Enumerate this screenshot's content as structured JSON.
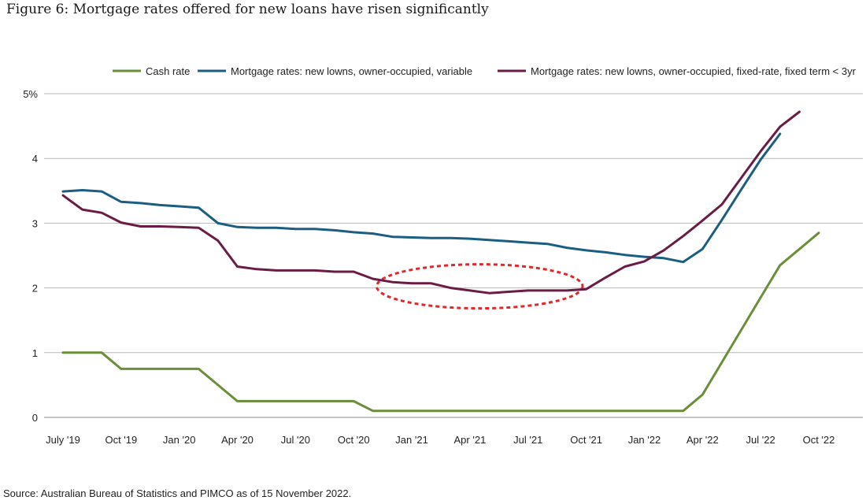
{
  "figure": {
    "title": "Figure 6: Mortgage rates offered for new loans have risen significantly",
    "source": "Source: Australian Bureau of Statistics and PIMCO as of 15 November 2022."
  },
  "chart_data": {
    "type": "line",
    "title": "Figure 6: Mortgage rates offered for new loans have risen significantly",
    "xlabel": "",
    "ylabel": "",
    "ylim": [
      0,
      5
    ],
    "y_ticks": [
      0,
      1,
      2,
      3,
      4,
      5
    ],
    "y_tick_labels": [
      "0",
      "1",
      "2",
      "3",
      "4",
      "5%"
    ],
    "x_tick_labels": [
      "July '19",
      "Oct '19",
      "Jan '20",
      "Apr '20",
      "Jul '20",
      "Oct '20",
      "Jan '21",
      "Apr '21",
      "Jul '21",
      "Oct '21",
      "Jan '22",
      "Apr '22",
      "Jul '22",
      "Oct '22"
    ],
    "grid": "horizontal",
    "legend_position": "top",
    "x": [
      "2019-07",
      "2019-08",
      "2019-09",
      "2019-10",
      "2019-11",
      "2019-12",
      "2020-01",
      "2020-02",
      "2020-03",
      "2020-04",
      "2020-05",
      "2020-06",
      "2020-07",
      "2020-08",
      "2020-09",
      "2020-10",
      "2020-11",
      "2020-12",
      "2021-01",
      "2021-02",
      "2021-03",
      "2021-04",
      "2021-05",
      "2021-06",
      "2021-07",
      "2021-08",
      "2021-09",
      "2021-10",
      "2021-11",
      "2021-12",
      "2022-01",
      "2022-02",
      "2022-03",
      "2022-04",
      "2022-05",
      "2022-06",
      "2022-07",
      "2022-08",
      "2022-09",
      "2022-10"
    ],
    "series": [
      {
        "name": "Cash rate",
        "color": "#6b8e3a",
        "values": [
          1.0,
          1.0,
          1.0,
          0.75,
          0.75,
          0.75,
          0.75,
          0.75,
          0.5,
          0.25,
          0.25,
          0.25,
          0.25,
          0.25,
          0.25,
          0.25,
          0.1,
          0.1,
          0.1,
          0.1,
          0.1,
          0.1,
          0.1,
          0.1,
          0.1,
          0.1,
          0.1,
          0.1,
          0.1,
          0.1,
          0.1,
          0.1,
          0.1,
          0.35,
          0.85,
          1.35,
          1.85,
          2.35,
          2.6,
          2.85
        ]
      },
      {
        "name": "Mortgage rates: new lowns, owner-occupied, variable",
        "color": "#1b5e82",
        "values": [
          3.49,
          3.51,
          3.49,
          3.33,
          3.31,
          3.28,
          3.26,
          3.24,
          3.0,
          2.94,
          2.93,
          2.93,
          2.91,
          2.91,
          2.89,
          2.86,
          2.84,
          2.79,
          2.78,
          2.77,
          2.77,
          2.76,
          2.74,
          2.72,
          2.7,
          2.68,
          2.62,
          2.58,
          2.55,
          2.51,
          2.48,
          2.46,
          2.4,
          2.6,
          3.05,
          3.52,
          3.98,
          4.38,
          null,
          null
        ]
      },
      {
        "name": "Mortgage rates: new lowns, owner-occupied, fixed-rate, fixed term < 3yr",
        "color": "#6b1c45",
        "values": [
          3.43,
          3.21,
          3.16,
          3.01,
          2.95,
          2.95,
          2.94,
          2.93,
          2.73,
          2.33,
          2.29,
          2.27,
          2.27,
          2.27,
          2.25,
          2.25,
          2.14,
          2.09,
          2.07,
          2.07,
          2.0,
          1.96,
          1.92,
          1.94,
          1.96,
          1.96,
          1.96,
          1.98,
          2.16,
          2.33,
          2.41,
          2.58,
          2.8,
          3.04,
          3.29,
          3.7,
          4.11,
          4.49,
          4.72,
          null
        ]
      }
    ],
    "annotations": [
      {
        "type": "dashed-ellipse",
        "color": "#e0282a",
        "x_range": [
          "2020-12",
          "2021-09"
        ],
        "y_center": 2.0
      }
    ]
  }
}
